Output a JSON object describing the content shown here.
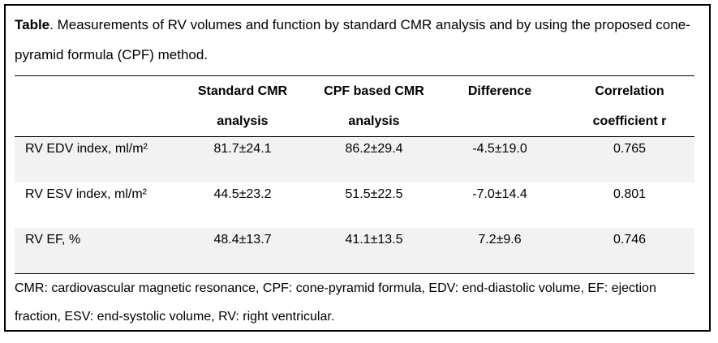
{
  "caption": {
    "label": "Table",
    "text": ". Measurements of RV volumes and function by standard CMR analysis and by using the proposed cone-pyramid formula (CPF) method."
  },
  "table": {
    "headers": [
      {
        "line1": "",
        "line2": ""
      },
      {
        "line1": "Standard CMR",
        "line2": "analysis"
      },
      {
        "line1": "CPF based CMR",
        "line2": "analysis"
      },
      {
        "line1": "Difference",
        "line2": ""
      },
      {
        "line1": "Correlation",
        "line2": "coefficient r"
      }
    ],
    "rows": [
      {
        "label": "RV EDV index, ml/m²",
        "standard": "81.7±24.1",
        "cpf": "86.2±29.4",
        "difference": "-4.5±19.0",
        "r": "0.765"
      },
      {
        "label": "RV ESV index, ml/m²",
        "standard": "44.5±23.2",
        "cpf": "51.5±22.5",
        "difference": "-7.0±14.4",
        "r": "0.801"
      },
      {
        "label": "RV EF, %",
        "standard": "48.4±13.7",
        "cpf": "41.1±13.5",
        "difference": "7.2±9.6",
        "r": "0.746"
      }
    ]
  },
  "footnote": "CMR: cardiovascular magnetic resonance, CPF: cone-pyramid formula, EDV: end-diastolic volume, EF: ejection fraction, ESV: end-systolic volume, RV: right ventricular."
}
